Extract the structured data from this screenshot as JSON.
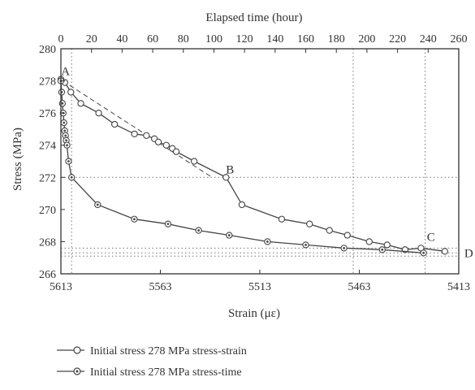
{
  "chart_data": {
    "type": "line",
    "top_axis": {
      "label": "Elapsed time (hour)",
      "range": [
        0,
        260
      ],
      "ticks": [
        0,
        20,
        40,
        60,
        80,
        100,
        120,
        140,
        160,
        180,
        200,
        220,
        240,
        260
      ],
      "tick_labels": [
        "0",
        "20",
        "40",
        "60",
        "80",
        "100",
        "120",
        "140",
        "160",
        "180",
        "200",
        "220",
        "240",
        "260"
      ]
    },
    "bottom_axis": {
      "label": "Strain (με)",
      "range": [
        5613,
        5413
      ],
      "reversed": true,
      "ticks": [
        5613,
        5563,
        5513,
        5463,
        5413
      ],
      "tick_labels": [
        "5613",
        "5563",
        "5513",
        "5463",
        "5413"
      ]
    },
    "y_axis": {
      "label": "Stress (MPa)",
      "range": [
        266,
        280
      ],
      "ticks": [
        266,
        268,
        270,
        272,
        274,
        276,
        278,
        280
      ],
      "tick_labels": [
        "266",
        "268",
        "270",
        "272",
        "274",
        "276",
        "278",
        "280"
      ]
    },
    "grid": false,
    "legend_position": "bottom",
    "series": [
      {
        "name": "Initial stress 278 MPa stress-strain",
        "x_axis": "bottom",
        "marker": "open-circle",
        "color": "#444444",
        "x": [
          5613,
          5611,
          5608,
          5603,
          5594,
          5586,
          5576,
          5570,
          5566,
          5564,
          5560,
          5557,
          5555,
          5546,
          5530,
          5522,
          5502,
          5488,
          5478,
          5469,
          5458,
          5449,
          5440,
          5432,
          5420
        ],
        "y": [
          278.1,
          277.9,
          277.3,
          276.6,
          276.0,
          275.3,
          274.7,
          274.6,
          274.4,
          274.2,
          274.0,
          273.8,
          273.6,
          273.0,
          272.0,
          270.3,
          269.4,
          269.1,
          268.7,
          268.4,
          268.0,
          267.8,
          267.5,
          267.6,
          267.4
        ]
      },
      {
        "name": "Initial stress 278 MPa stress-time",
        "x_axis": "top",
        "marker": "circle-dot",
        "color": "#444444",
        "x": [
          0,
          0.5,
          1,
          1.5,
          2,
          2.5,
          3,
          3.5,
          4,
          5,
          7,
          24,
          48,
          70,
          90,
          110,
          135,
          160,
          185,
          210,
          237
        ],
        "y": [
          278.0,
          277.3,
          276.6,
          276.0,
          275.4,
          274.9,
          274.6,
          274.3,
          274.0,
          273.0,
          272.0,
          270.3,
          269.4,
          269.1,
          268.7,
          268.4,
          268.0,
          267.8,
          267.6,
          267.5,
          267.3
        ]
      }
    ],
    "reference_lines": [
      {
        "type": "dashed",
        "axis": "bottom",
        "x": [
          5612,
          5537
        ],
        "y": [
          278.0,
          272.0
        ]
      },
      {
        "type": "dotted-horizontal",
        "y": 272.0
      },
      {
        "type": "dotted-horizontal",
        "y": 267.6
      },
      {
        "type": "dotted-horizontal",
        "y": 267.3
      },
      {
        "type": "dotted-horizontal",
        "y": 267.1
      },
      {
        "type": "dotted-vertical",
        "axis": "top",
        "x": 7
      },
      {
        "type": "dotted-vertical",
        "axis": "top",
        "x": 191
      },
      {
        "type": "dotted-vertical",
        "axis": "top",
        "x": 238
      }
    ],
    "annotations": [
      {
        "text": "A",
        "axis": "top",
        "x": 3,
        "y": 278.6
      },
      {
        "text": "B",
        "axis": "bottom",
        "x": 5528,
        "y": 272.5
      },
      {
        "text": "C",
        "axis": "bottom",
        "x": 5427,
        "y": 268.3
      },
      {
        "text": "D",
        "axis": "bottom",
        "x": 5408,
        "y": 267.3
      }
    ]
  }
}
